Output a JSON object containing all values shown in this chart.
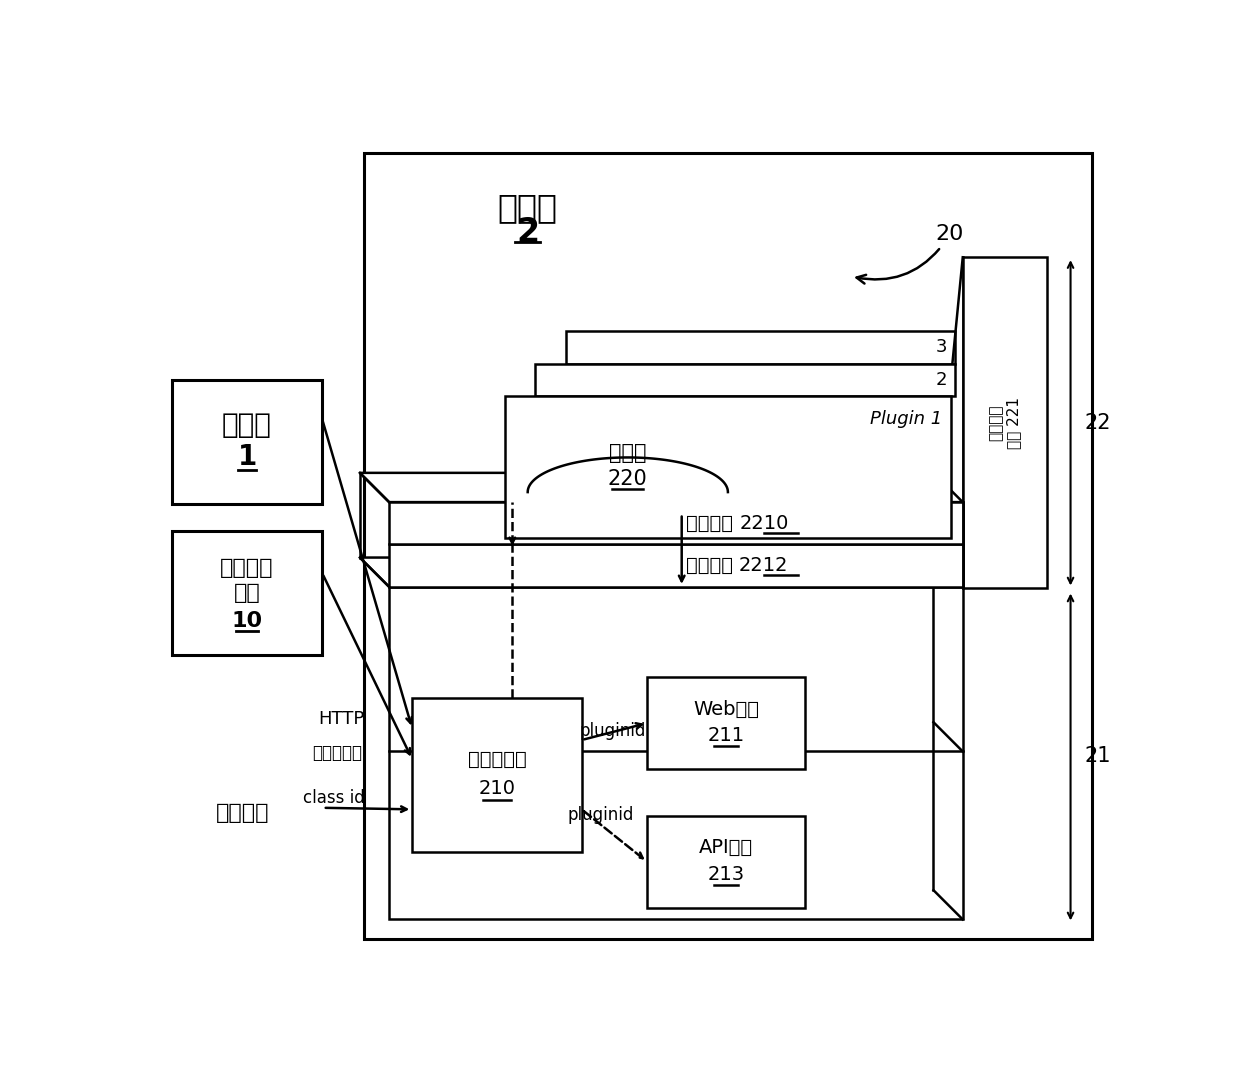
{
  "fig_w": 12.4,
  "fig_h": 10.85,
  "dpi": 100,
  "bg": "#ffffff",
  "lw": 1.8,
  "texts": {
    "client_label": "客户端",
    "client_num": "2",
    "ref20": "20",
    "server_label": "服务端",
    "server_num": "1",
    "pack_line1": "打包加密",
    "pack_line2": "工具",
    "pack_num": "10",
    "page_trigger": "页面触发",
    "plugin_framework": "插件框架\n模块 221",
    "lib_label": "插件库",
    "lib_num": "220",
    "plugin1": "Plugin 1",
    "tab2": "2",
    "tab3": "3",
    "iface2210": "插件接口",
    "iface2210_num": "2210",
    "iface2212": "框架接口",
    "iface2212_num": "2212",
    "mgr_label": "插件管理器",
    "mgr_num": "210",
    "web_label": "Web引擎",
    "web_num": "211",
    "api_label": "API模块",
    "api_num": "213",
    "http": "HTTP",
    "enc_data": "加密数据包",
    "class_id": "class id",
    "pluginid": "pluginid",
    "dim22": "22",
    "dim21": "21"
  }
}
